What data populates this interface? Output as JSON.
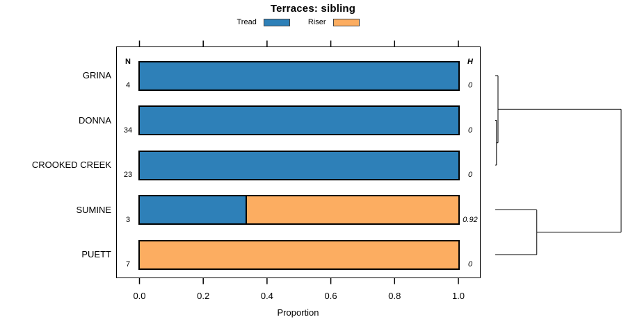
{
  "chart_data": {
    "type": "bar",
    "variant": "horizontal-stacked-proportion-with-dendrogram",
    "title": "Terraces: sibling",
    "xlabel": "Proportion",
    "xlim": [
      0,
      1
    ],
    "x_tick_values": [
      0,
      0.2,
      0.4,
      0.6,
      0.8,
      1.0
    ],
    "x_tick_labels": [
      "0.0",
      "0.2",
      "0.4",
      "0.6",
      "0.8",
      "1.0"
    ],
    "grid": false,
    "legend_position": "top",
    "categories": [
      "GRINA",
      "DONNA",
      "CROOKED CREEK",
      "SUMINE",
      "PUETT"
    ],
    "n_header": "N",
    "h_header": "H",
    "n_values": [
      "4",
      "34",
      "23",
      "3",
      "7"
    ],
    "h_values": [
      "0",
      "0",
      "0",
      "0.92",
      "0"
    ],
    "series": [
      {
        "name": "Tread",
        "color": "#2E80B8",
        "values": [
          1,
          1,
          1,
          0.333,
          0
        ]
      },
      {
        "name": "Riser",
        "color": "#FCAD61",
        "values": [
          0,
          0,
          0,
          0.667,
          1
        ]
      }
    ],
    "bar_border_color": "#000000",
    "dendrogram": {
      "leaves": [
        "GRINA",
        "DONNA",
        "CROOKED CREEK",
        "SUMINE",
        "PUETT"
      ],
      "merges": [
        {
          "a": "DONNA",
          "b": "CROOKED CREEK",
          "height": 0.01
        },
        {
          "a": "GRINA",
          "b": "merge0",
          "height": 0.022
        },
        {
          "a": "SUMINE",
          "b": "PUETT",
          "height": 0.33
        },
        {
          "a": "merge1",
          "b": "merge2",
          "height": 1.0
        }
      ]
    }
  }
}
